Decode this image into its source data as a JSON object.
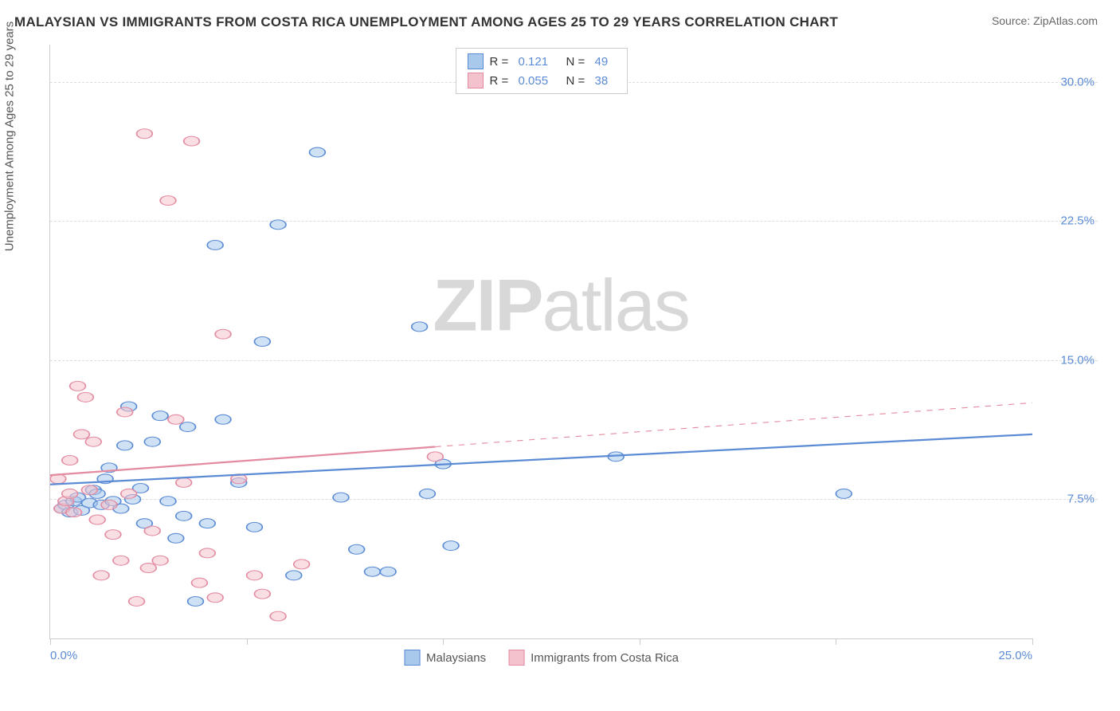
{
  "title": "MALAYSIAN VS IMMIGRANTS FROM COSTA RICA UNEMPLOYMENT AMONG AGES 25 TO 29 YEARS CORRELATION CHART",
  "source": "Source: ZipAtlas.com",
  "y_axis_label": "Unemployment Among Ages 25 to 29 years",
  "watermark_a": "ZIP",
  "watermark_b": "atlas",
  "chart": {
    "type": "scatter",
    "xlim": [
      0,
      25
    ],
    "ylim": [
      0,
      32
    ],
    "x_ticks": [
      0,
      5,
      10,
      15,
      20,
      25
    ],
    "y_gridlines": [
      7.5,
      15.0,
      22.5,
      30.0
    ],
    "x_tick_labels": [
      "0.0%",
      "25.0%"
    ],
    "y_tick_labels": [
      "7.5%",
      "15.0%",
      "22.5%",
      "30.0%"
    ],
    "background_color": "#ffffff",
    "grid_color": "#dddddd",
    "marker_radius": 8,
    "marker_opacity": 0.55,
    "series": [
      {
        "name": "Malaysians",
        "color_fill": "#a8c8ec",
        "color_stroke": "#5b8bd4",
        "r": "0.121",
        "n": "49",
        "trend": {
          "x1": 0,
          "y1": 8.3,
          "x2": 25,
          "y2": 11.0,
          "solid_until_x": 25
        },
        "points": [
          [
            0.3,
            7.0
          ],
          [
            0.4,
            7.2
          ],
          [
            0.5,
            6.8
          ],
          [
            0.6,
            7.4
          ],
          [
            0.7,
            7.6
          ],
          [
            0.8,
            6.9
          ],
          [
            1.0,
            7.3
          ],
          [
            1.1,
            8.0
          ],
          [
            1.2,
            7.8
          ],
          [
            1.3,
            7.2
          ],
          [
            1.4,
            8.6
          ],
          [
            1.5,
            9.2
          ],
          [
            1.6,
            7.4
          ],
          [
            1.8,
            7.0
          ],
          [
            1.9,
            10.4
          ],
          [
            2.0,
            12.5
          ],
          [
            2.1,
            7.5
          ],
          [
            2.3,
            8.1
          ],
          [
            2.4,
            6.2
          ],
          [
            2.6,
            10.6
          ],
          [
            2.8,
            12.0
          ],
          [
            3.0,
            7.4
          ],
          [
            3.2,
            5.4
          ],
          [
            3.4,
            6.6
          ],
          [
            3.5,
            11.4
          ],
          [
            3.7,
            2.0
          ],
          [
            4.0,
            6.2
          ],
          [
            4.2,
            21.2
          ],
          [
            4.4,
            11.8
          ],
          [
            4.8,
            8.4
          ],
          [
            5.2,
            6.0
          ],
          [
            5.4,
            16.0
          ],
          [
            5.8,
            22.3
          ],
          [
            6.2,
            3.4
          ],
          [
            6.8,
            26.2
          ],
          [
            7.4,
            7.6
          ],
          [
            7.8,
            4.8
          ],
          [
            8.2,
            3.6
          ],
          [
            8.6,
            3.6
          ],
          [
            9.4,
            16.8
          ],
          [
            9.6,
            7.8
          ],
          [
            10.0,
            9.4
          ],
          [
            10.2,
            5.0
          ],
          [
            14.4,
            9.8
          ],
          [
            20.2,
            7.8
          ]
        ]
      },
      {
        "name": "Immigrants from Costa Rica",
        "color_fill": "#f4c2cc",
        "color_stroke": "#e38ba0",
        "r": "0.055",
        "n": "38",
        "trend": {
          "x1": 0,
          "y1": 8.8,
          "x2": 25,
          "y2": 12.7,
          "solid_until_x": 9.8
        },
        "points": [
          [
            0.2,
            8.6
          ],
          [
            0.3,
            7.0
          ],
          [
            0.4,
            7.4
          ],
          [
            0.5,
            7.8
          ],
          [
            0.5,
            9.6
          ],
          [
            0.6,
            6.8
          ],
          [
            0.7,
            13.6
          ],
          [
            0.8,
            11.0
          ],
          [
            0.9,
            13.0
          ],
          [
            1.0,
            8.0
          ],
          [
            1.1,
            10.6
          ],
          [
            1.2,
            6.4
          ],
          [
            1.3,
            3.4
          ],
          [
            1.5,
            7.2
          ],
          [
            1.6,
            5.6
          ],
          [
            1.8,
            4.2
          ],
          [
            1.9,
            12.2
          ],
          [
            2.0,
            7.8
          ],
          [
            2.2,
            2.0
          ],
          [
            2.4,
            27.2
          ],
          [
            2.5,
            3.8
          ],
          [
            2.6,
            5.8
          ],
          [
            2.8,
            4.2
          ],
          [
            3.0,
            23.6
          ],
          [
            3.2,
            11.8
          ],
          [
            3.4,
            8.4
          ],
          [
            3.6,
            26.8
          ],
          [
            3.8,
            3.0
          ],
          [
            4.0,
            4.6
          ],
          [
            4.2,
            2.2
          ],
          [
            4.4,
            16.4
          ],
          [
            4.8,
            8.6
          ],
          [
            5.2,
            3.4
          ],
          [
            5.4,
            2.4
          ],
          [
            5.8,
            1.2
          ],
          [
            6.4,
            4.0
          ],
          [
            9.8,
            9.8
          ]
        ]
      }
    ]
  },
  "legend_top": {
    "r_label": "R  =",
    "n_label": "N  ="
  },
  "legend_bottom": {}
}
